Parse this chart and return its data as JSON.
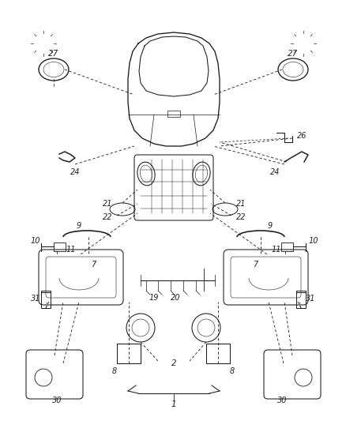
{
  "bg_color": "#ffffff",
  "line_color": "#1a1a1a",
  "lw": 0.75,
  "fig_width": 4.39,
  "fig_height": 5.33,
  "dpi": 100
}
